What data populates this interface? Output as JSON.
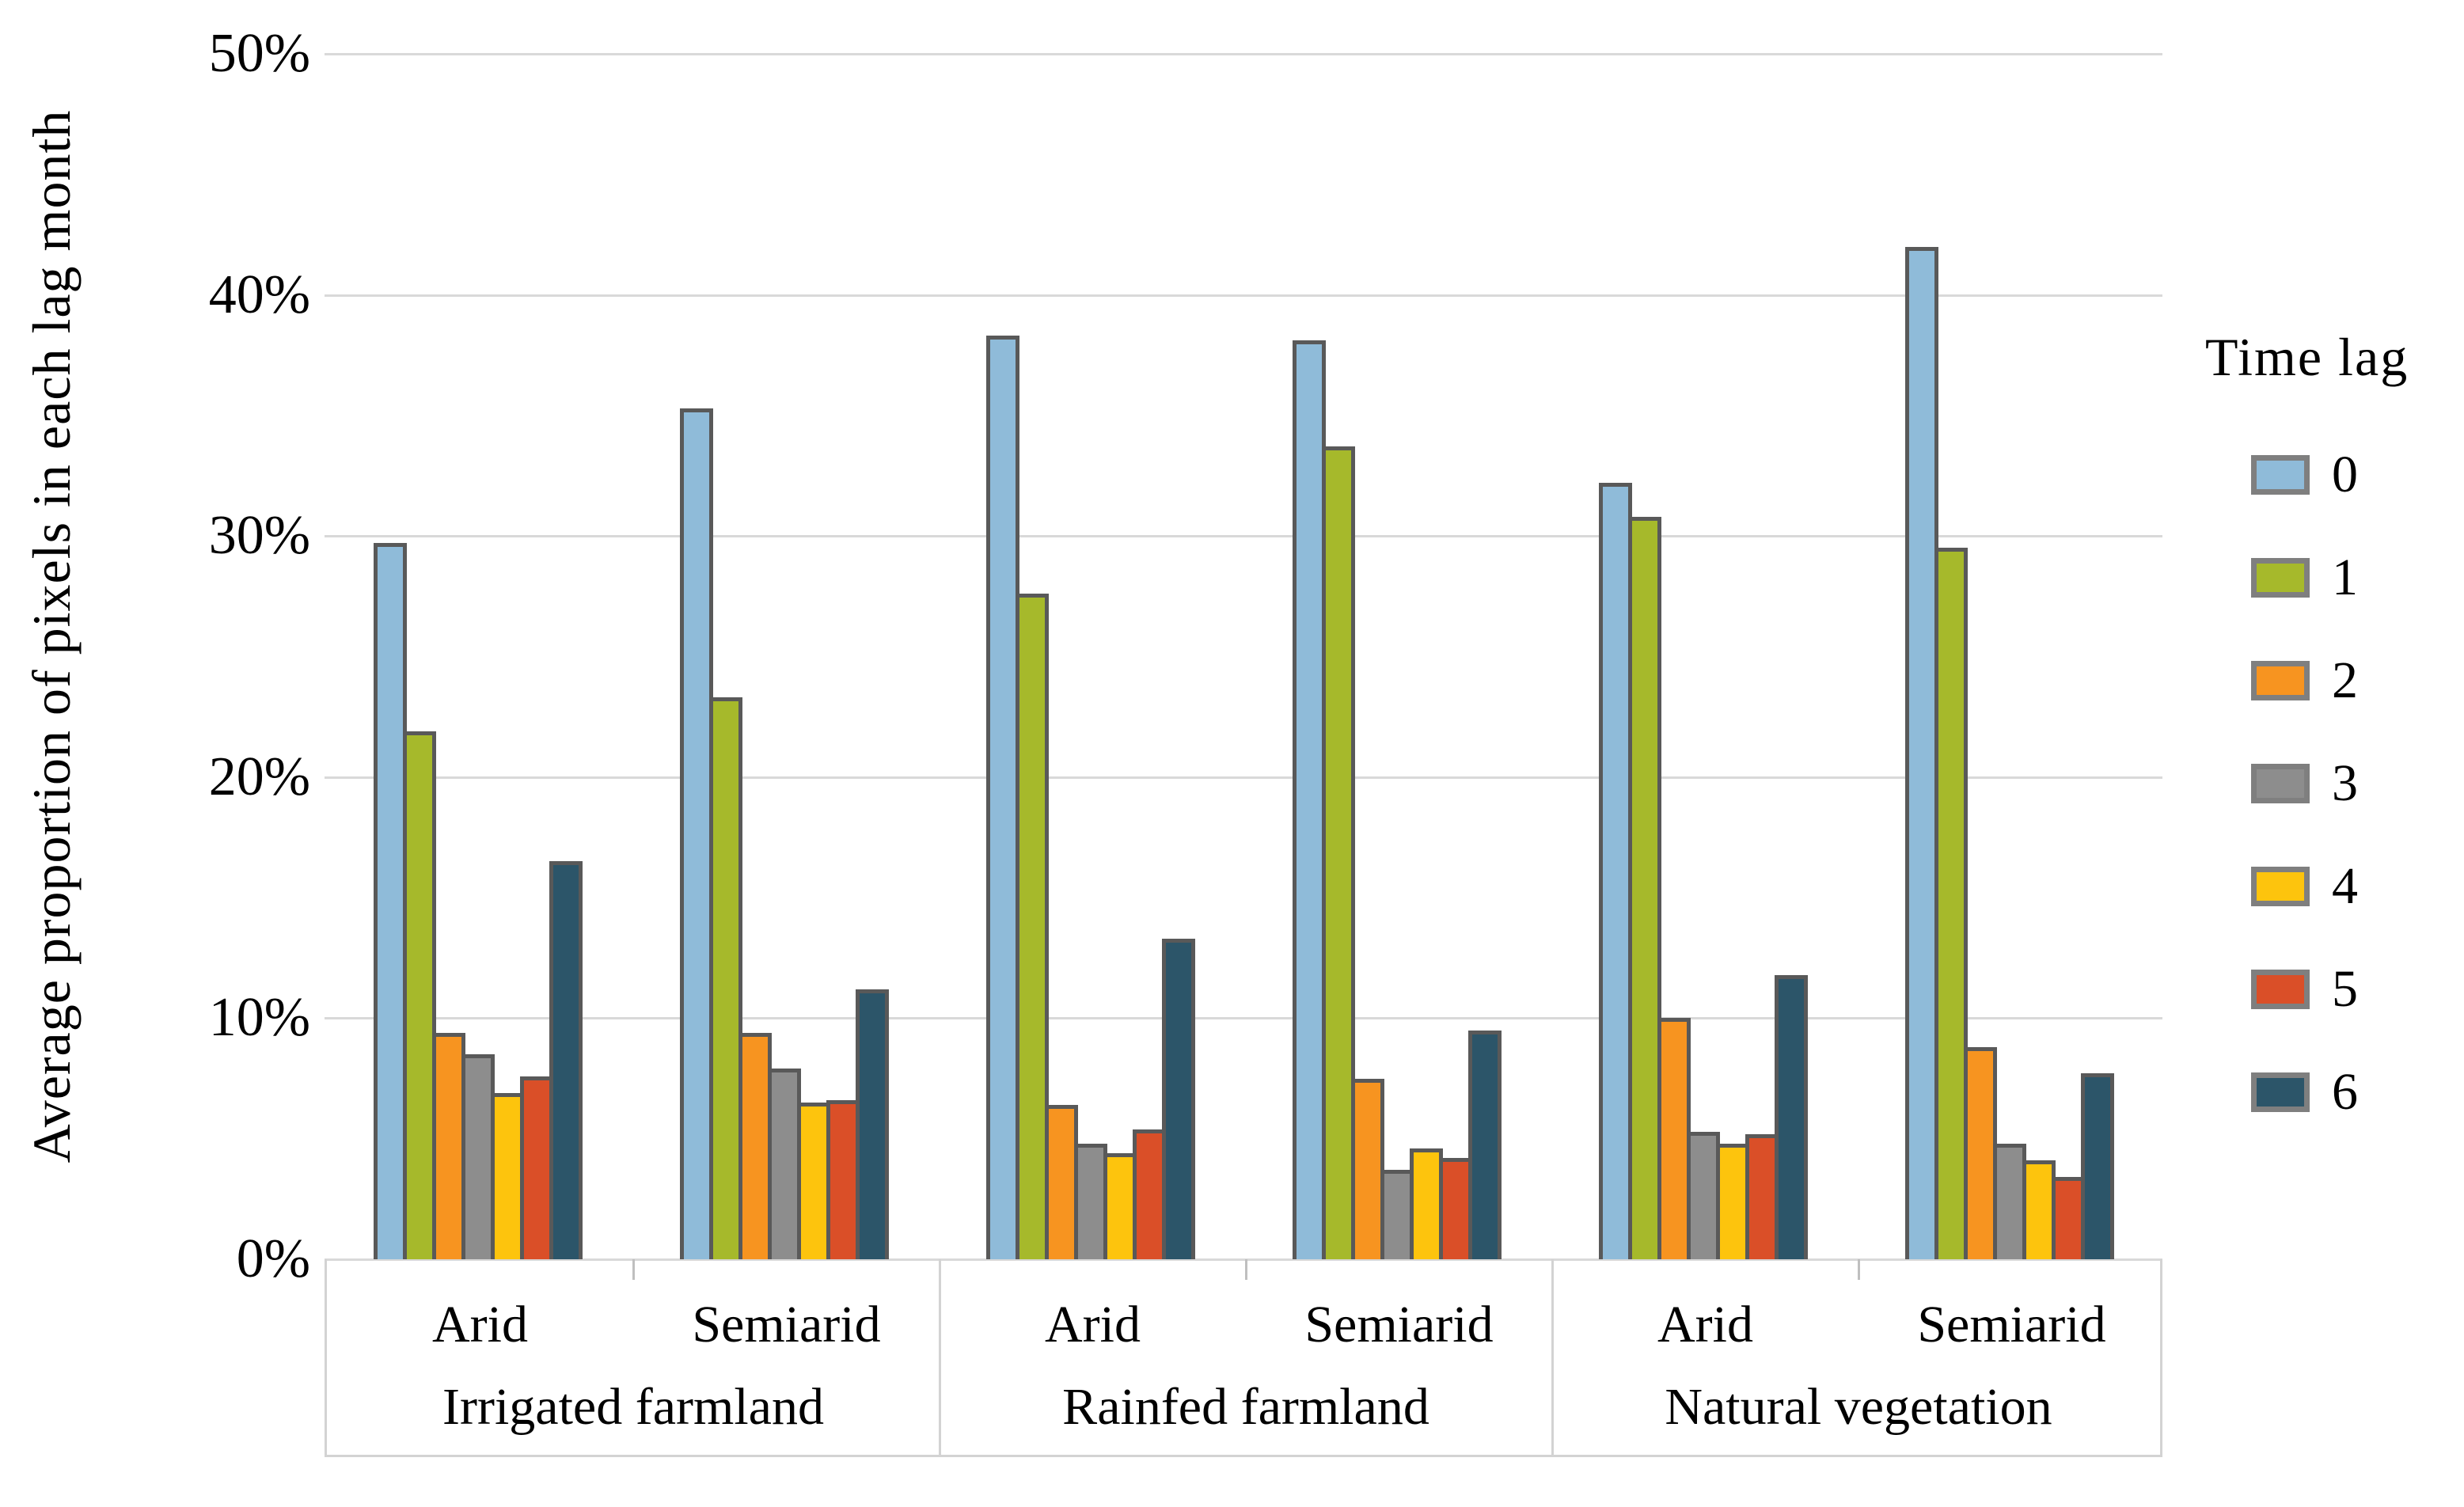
{
  "chart_data": {
    "type": "bar",
    "title": "",
    "ylabel": "Average proportion of pixels  in each lag month",
    "xlabel": "",
    "ylim": [
      0,
      50
    ],
    "ytick_labels": [
      "0%",
      "10%",
      "20%",
      "30%",
      "40%",
      "50%"
    ],
    "grid": true,
    "legend_title": "Time lag",
    "legend_position": "right",
    "categories_major": [
      "Irrigated farmland",
      "Rainfed farmland",
      "Natural vegetation"
    ],
    "categories_minor": [
      "Arid",
      "Semiarid"
    ],
    "groups": [
      {
        "major": "Irrigated farmland",
        "minor": "Arid"
      },
      {
        "major": "Irrigated farmland",
        "minor": "Semiarid"
      },
      {
        "major": "Rainfed farmland",
        "minor": "Arid"
      },
      {
        "major": "Rainfed farmland",
        "minor": "Semiarid"
      },
      {
        "major": "Natural vegetation",
        "minor": "Arid"
      },
      {
        "major": "Natural vegetation",
        "minor": "Semiarid"
      }
    ],
    "series": [
      {
        "name": "0",
        "color": "#8fbbd9",
        "values": [
          29.7,
          35.3,
          38.3,
          38.1,
          32.2,
          42.0
        ]
      },
      {
        "name": "1",
        "color": "#a6b92b",
        "values": [
          21.9,
          23.3,
          27.6,
          33.7,
          30.8,
          29.5
        ]
      },
      {
        "name": "2",
        "color": "#f79420",
        "values": [
          9.4,
          9.4,
          6.4,
          7.5,
          10.0,
          8.8
        ]
      },
      {
        "name": "3",
        "color": "#8d8d8d",
        "values": [
          8.5,
          7.9,
          4.8,
          3.7,
          5.3,
          4.8
        ]
      },
      {
        "name": "4",
        "color": "#fdc40d",
        "values": [
          6.9,
          6.5,
          4.4,
          4.6,
          4.8,
          4.1
        ]
      },
      {
        "name": "5",
        "color": "#da4f28",
        "values": [
          7.6,
          6.6,
          5.4,
          4.2,
          5.2,
          3.4
        ]
      },
      {
        "name": "6",
        "color": "#2c5569",
        "values": [
          16.5,
          11.2,
          13.3,
          9.5,
          11.8,
          7.7
        ]
      }
    ],
    "colors": {
      "bar_border": "#595959",
      "gridline": "#d9d9d9",
      "category_box_line": "#d3d3d3",
      "legend_swatch_border": "#7f7f7f",
      "text": "#000000",
      "background": "#ffffff"
    }
  }
}
